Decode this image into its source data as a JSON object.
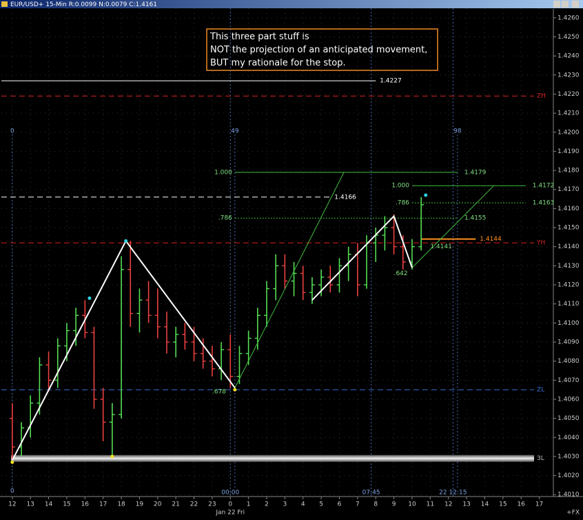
{
  "chart_data": {
    "type": "ohlc",
    "title": "EUR/USD+ 15-Min R:0.0099 N:0.0079 C:1.4161",
    "annotation": [
      "This three part stuff is",
      "NOT the projection of an anticipated movement,",
      "BUT my rationale for the stop."
    ],
    "x": [
      0,
      2,
      4,
      6,
      8,
      10,
      12,
      14,
      16,
      18,
      20,
      22,
      24,
      26,
      28,
      30,
      32,
      34,
      36,
      38,
      40,
      42,
      44,
      46,
      48,
      50,
      52,
      54,
      56,
      58,
      60,
      62,
      64,
      66,
      68,
      70,
      72,
      74,
      76,
      78,
      80,
      82,
      84,
      86,
      88,
      90
    ],
    "open": [
      1.405,
      1.4035,
      1.4045,
      1.4058,
      1.4078,
      1.407,
      1.4088,
      1.4096,
      1.4104,
      1.4095,
      1.406,
      1.4048,
      1.4052,
      1.4128,
      1.4105,
      1.4112,
      1.4104,
      1.4098,
      1.409,
      1.4094,
      1.409,
      1.4084,
      1.408,
      1.4076,
      1.4086,
      1.4072,
      1.4084,
      1.4092,
      1.4104,
      1.4118,
      1.413,
      1.4122,
      1.4126,
      1.4116,
      1.412,
      1.4124,
      1.412,
      1.413,
      1.4136,
      1.412,
      1.4142,
      1.4146,
      1.415,
      1.414,
      1.4132,
      1.414
    ],
    "high": [
      1.4058,
      1.4048,
      1.4062,
      1.4082,
      1.4085,
      1.4092,
      1.41,
      1.4108,
      1.4112,
      1.4098,
      1.4066,
      1.4058,
      1.4135,
      1.4143,
      1.4118,
      1.4122,
      1.4118,
      1.4106,
      1.4098,
      1.41,
      1.4098,
      1.4092,
      1.4088,
      1.409,
      1.4094,
      1.4088,
      1.4096,
      1.4108,
      1.4122,
      1.4136,
      1.4136,
      1.4132,
      1.413,
      1.4124,
      1.4128,
      1.413,
      1.4134,
      1.414,
      1.4142,
      1.4146,
      1.415,
      1.4156,
      1.4157,
      1.4146,
      1.4144,
      1.4166
    ],
    "low": [
      1.4028,
      1.403,
      1.404,
      1.4052,
      1.4064,
      1.4066,
      1.408,
      1.4088,
      1.4092,
      1.4055,
      1.4038,
      1.403,
      1.405,
      1.4098,
      1.4095,
      1.41,
      1.4092,
      1.4084,
      1.4082,
      1.4086,
      1.408,
      1.4076,
      1.4072,
      1.407,
      1.4066,
      1.4068,
      1.4078,
      1.4086,
      1.4098,
      1.4112,
      1.4118,
      1.4114,
      1.4112,
      1.411,
      1.4114,
      1.4116,
      1.4116,
      1.4122,
      1.4114,
      1.4118,
      1.4132,
      1.4138,
      1.4136,
      1.4128,
      1.4128,
      1.4138
    ],
    "close": [
      1.4035,
      1.4045,
      1.4058,
      1.4078,
      1.407,
      1.4088,
      1.4096,
      1.4104,
      1.4095,
      1.406,
      1.4048,
      1.4052,
      1.4128,
      1.4105,
      1.4112,
      1.4104,
      1.4098,
      1.409,
      1.4094,
      1.409,
      1.4084,
      1.408,
      1.4076,
      1.4086,
      1.4072,
      1.4084,
      1.4092,
      1.4104,
      1.4118,
      1.413,
      1.4122,
      1.4126,
      1.4116,
      1.412,
      1.4124,
      1.412,
      1.413,
      1.4136,
      1.412,
      1.4142,
      1.4146,
      1.415,
      1.414,
      1.4132,
      1.414,
      1.4162
    ],
    "up_color": "#55e055",
    "down_color": "#ee4040",
    "xlim": [
      -2.4,
      119.1
    ],
    "ylim": [
      1.4009,
      1.4265
    ],
    "grid": true,
    "yticks": [
      {
        "value": 1.426,
        "label": "1.4260"
      },
      {
        "value": 1.425,
        "label": "1.4250"
      },
      {
        "value": 1.424,
        "label": "1.4240"
      },
      {
        "value": 1.423,
        "label": "1.4230"
      },
      {
        "value": 1.422,
        "label": "1.4220"
      },
      {
        "value": 1.421,
        "label": "1.4210"
      },
      {
        "value": 1.42,
        "label": "1.4200"
      },
      {
        "value": 1.419,
        "label": "1.4190"
      },
      {
        "value": 1.418,
        "label": "1.4180"
      },
      {
        "value": 1.417,
        "label": "1.4170"
      },
      {
        "value": 1.416,
        "label": "1.4160"
      },
      {
        "value": 1.415,
        "label": "1.4150"
      },
      {
        "value": 1.414,
        "label": "1.4140"
      },
      {
        "value": 1.413,
        "label": "1.4130"
      },
      {
        "value": 1.412,
        "label": "1.4120"
      },
      {
        "value": 1.411,
        "label": "1.4110"
      },
      {
        "value": 1.41,
        "label": "1.4100"
      },
      {
        "value": 1.409,
        "label": "1.4090"
      },
      {
        "value": 1.408,
        "label": "1.4080"
      },
      {
        "value": 1.407,
        "label": "1.4070"
      },
      {
        "value": 1.406,
        "label": "1.4060"
      },
      {
        "value": 1.405,
        "label": "1.4050"
      },
      {
        "value": 1.404,
        "label": "1.4040"
      },
      {
        "value": 1.403,
        "label": "1.4030"
      },
      {
        "value": 1.402,
        "label": "1.4020"
      },
      {
        "value": 1.401,
        "label": "1.4010"
      }
    ],
    "xticks": [
      {
        "value": 0,
        "label": "12"
      },
      {
        "value": 4,
        "label": "13"
      },
      {
        "value": 8,
        "label": "14"
      },
      {
        "value": 12,
        "label": "15"
      },
      {
        "value": 16,
        "label": "16"
      },
      {
        "value": 20,
        "label": "17"
      },
      {
        "value": 24,
        "label": "18"
      },
      {
        "value": 28,
        "label": "19"
      },
      {
        "value": 32,
        "label": "20"
      },
      {
        "value": 36,
        "label": "21"
      },
      {
        "value": 40,
        "label": "22"
      },
      {
        "value": 44,
        "label": "23"
      },
      {
        "value": 48,
        "label": "0"
      },
      {
        "value": 52,
        "label": "1"
      },
      {
        "value": 56,
        "label": "2"
      },
      {
        "value": 60,
        "label": "3"
      },
      {
        "value": 64,
        "label": "4"
      },
      {
        "value": 68,
        "label": "5"
      },
      {
        "value": 72,
        "label": "6"
      },
      {
        "value": 76,
        "label": "7"
      },
      {
        "value": 80,
        "label": "8"
      },
      {
        "value": 84,
        "label": "9"
      },
      {
        "value": 88,
        "label": "10"
      },
      {
        "value": 92,
        "label": "11"
      },
      {
        "value": 96,
        "label": "12"
      },
      {
        "value": 100,
        "label": "13"
      },
      {
        "value": 104,
        "label": "14"
      },
      {
        "value": 108,
        "label": "15"
      },
      {
        "value": 112,
        "label": "16"
      },
      {
        "value": 116,
        "label": "17"
      }
    ],
    "date_label": {
      "value": 48,
      "label": "Jan 22 Fri"
    },
    "bar_markers": [
      0,
      49,
      98
    ],
    "time_marks": [
      {
        "value": 48,
        "label": "00:00"
      },
      {
        "value": 79,
        "label": "07:45"
      },
      {
        "value": 97,
        "label": "22 12:15"
      }
    ],
    "corner_label": "+FX",
    "levels": [
      {
        "value": 1.4227,
        "to": 80,
        "color": "#ffffff",
        "dash": false
      },
      {
        "value": 1.4166,
        "to": 70,
        "color": "#ffffff",
        "dash": true
      },
      {
        "value": 1.4219,
        "tag": "ZH",
        "color": "#dd2222",
        "dash": true
      },
      {
        "value": 1.4142,
        "tag": "YH",
        "color": "#dd2222",
        "dash": true
      },
      {
        "value": 1.4065,
        "tag": "ZL",
        "color": "#3a70d8",
        "dash": true
      },
      {
        "value": 1.4029,
        "tag": "3L",
        "color": "#bbbbbb",
        "thick": true
      }
    ],
    "fibs": [
      {
        "ratio": "1.000",
        "value": 1.4179,
        "from": 49,
        "to": 98,
        "dash": false
      },
      {
        "ratio": ".786",
        "value": 1.4155,
        "from": 49,
        "to": 98,
        "dash": true
      },
      {
        "ratio": "1.000",
        "value": 1.4172,
        "from": 88,
        "to": 113,
        "dash": false
      },
      {
        "ratio": ".786",
        "value": 1.4163,
        "from": 88,
        "to": 113,
        "dash": true
      }
    ],
    "stop_level": {
      "value": 1.4144,
      "from": 90,
      "to": 102,
      "color": "#ff9020"
    },
    "point_labels": [
      {
        "text": ".678",
        "x": 44,
        "y": 1.4064
      },
      {
        "text": ".642",
        "x": 84,
        "y": 1.4126
      },
      {
        "text": "1.4141",
        "x": 92,
        "y": 1.414
      }
    ],
    "zigzags": [
      {
        "x": [
          0,
          25,
          49
        ],
        "y": [
          1.4028,
          1.4143,
          1.4066
        ]
      },
      {
        "x": [
          66,
          84,
          88
        ],
        "y": [
          1.4112,
          1.4156,
          1.4129
        ]
      }
    ],
    "rays": [
      {
        "x": [
          49,
          73
        ],
        "y": [
          1.4066,
          1.4179
        ]
      },
      {
        "x": [
          88,
          106
        ],
        "y": [
          1.4129,
          1.4172
        ]
      }
    ],
    "pivots": [
      {
        "x": 17,
        "y": 1.4113,
        "color": "#30d0e0"
      },
      {
        "x": 25,
        "y": 1.4143,
        "color": "#30d0e0"
      },
      {
        "x": 91,
        "y": 1.4167,
        "color": "#30d0e0"
      },
      {
        "x": 0,
        "y": 1.4027,
        "color": "#f0e020"
      },
      {
        "x": 22,
        "y": 1.403,
        "color": "#f0e020"
      },
      {
        "x": 49,
        "y": 1.4065,
        "color": "#f0e020"
      }
    ]
  }
}
